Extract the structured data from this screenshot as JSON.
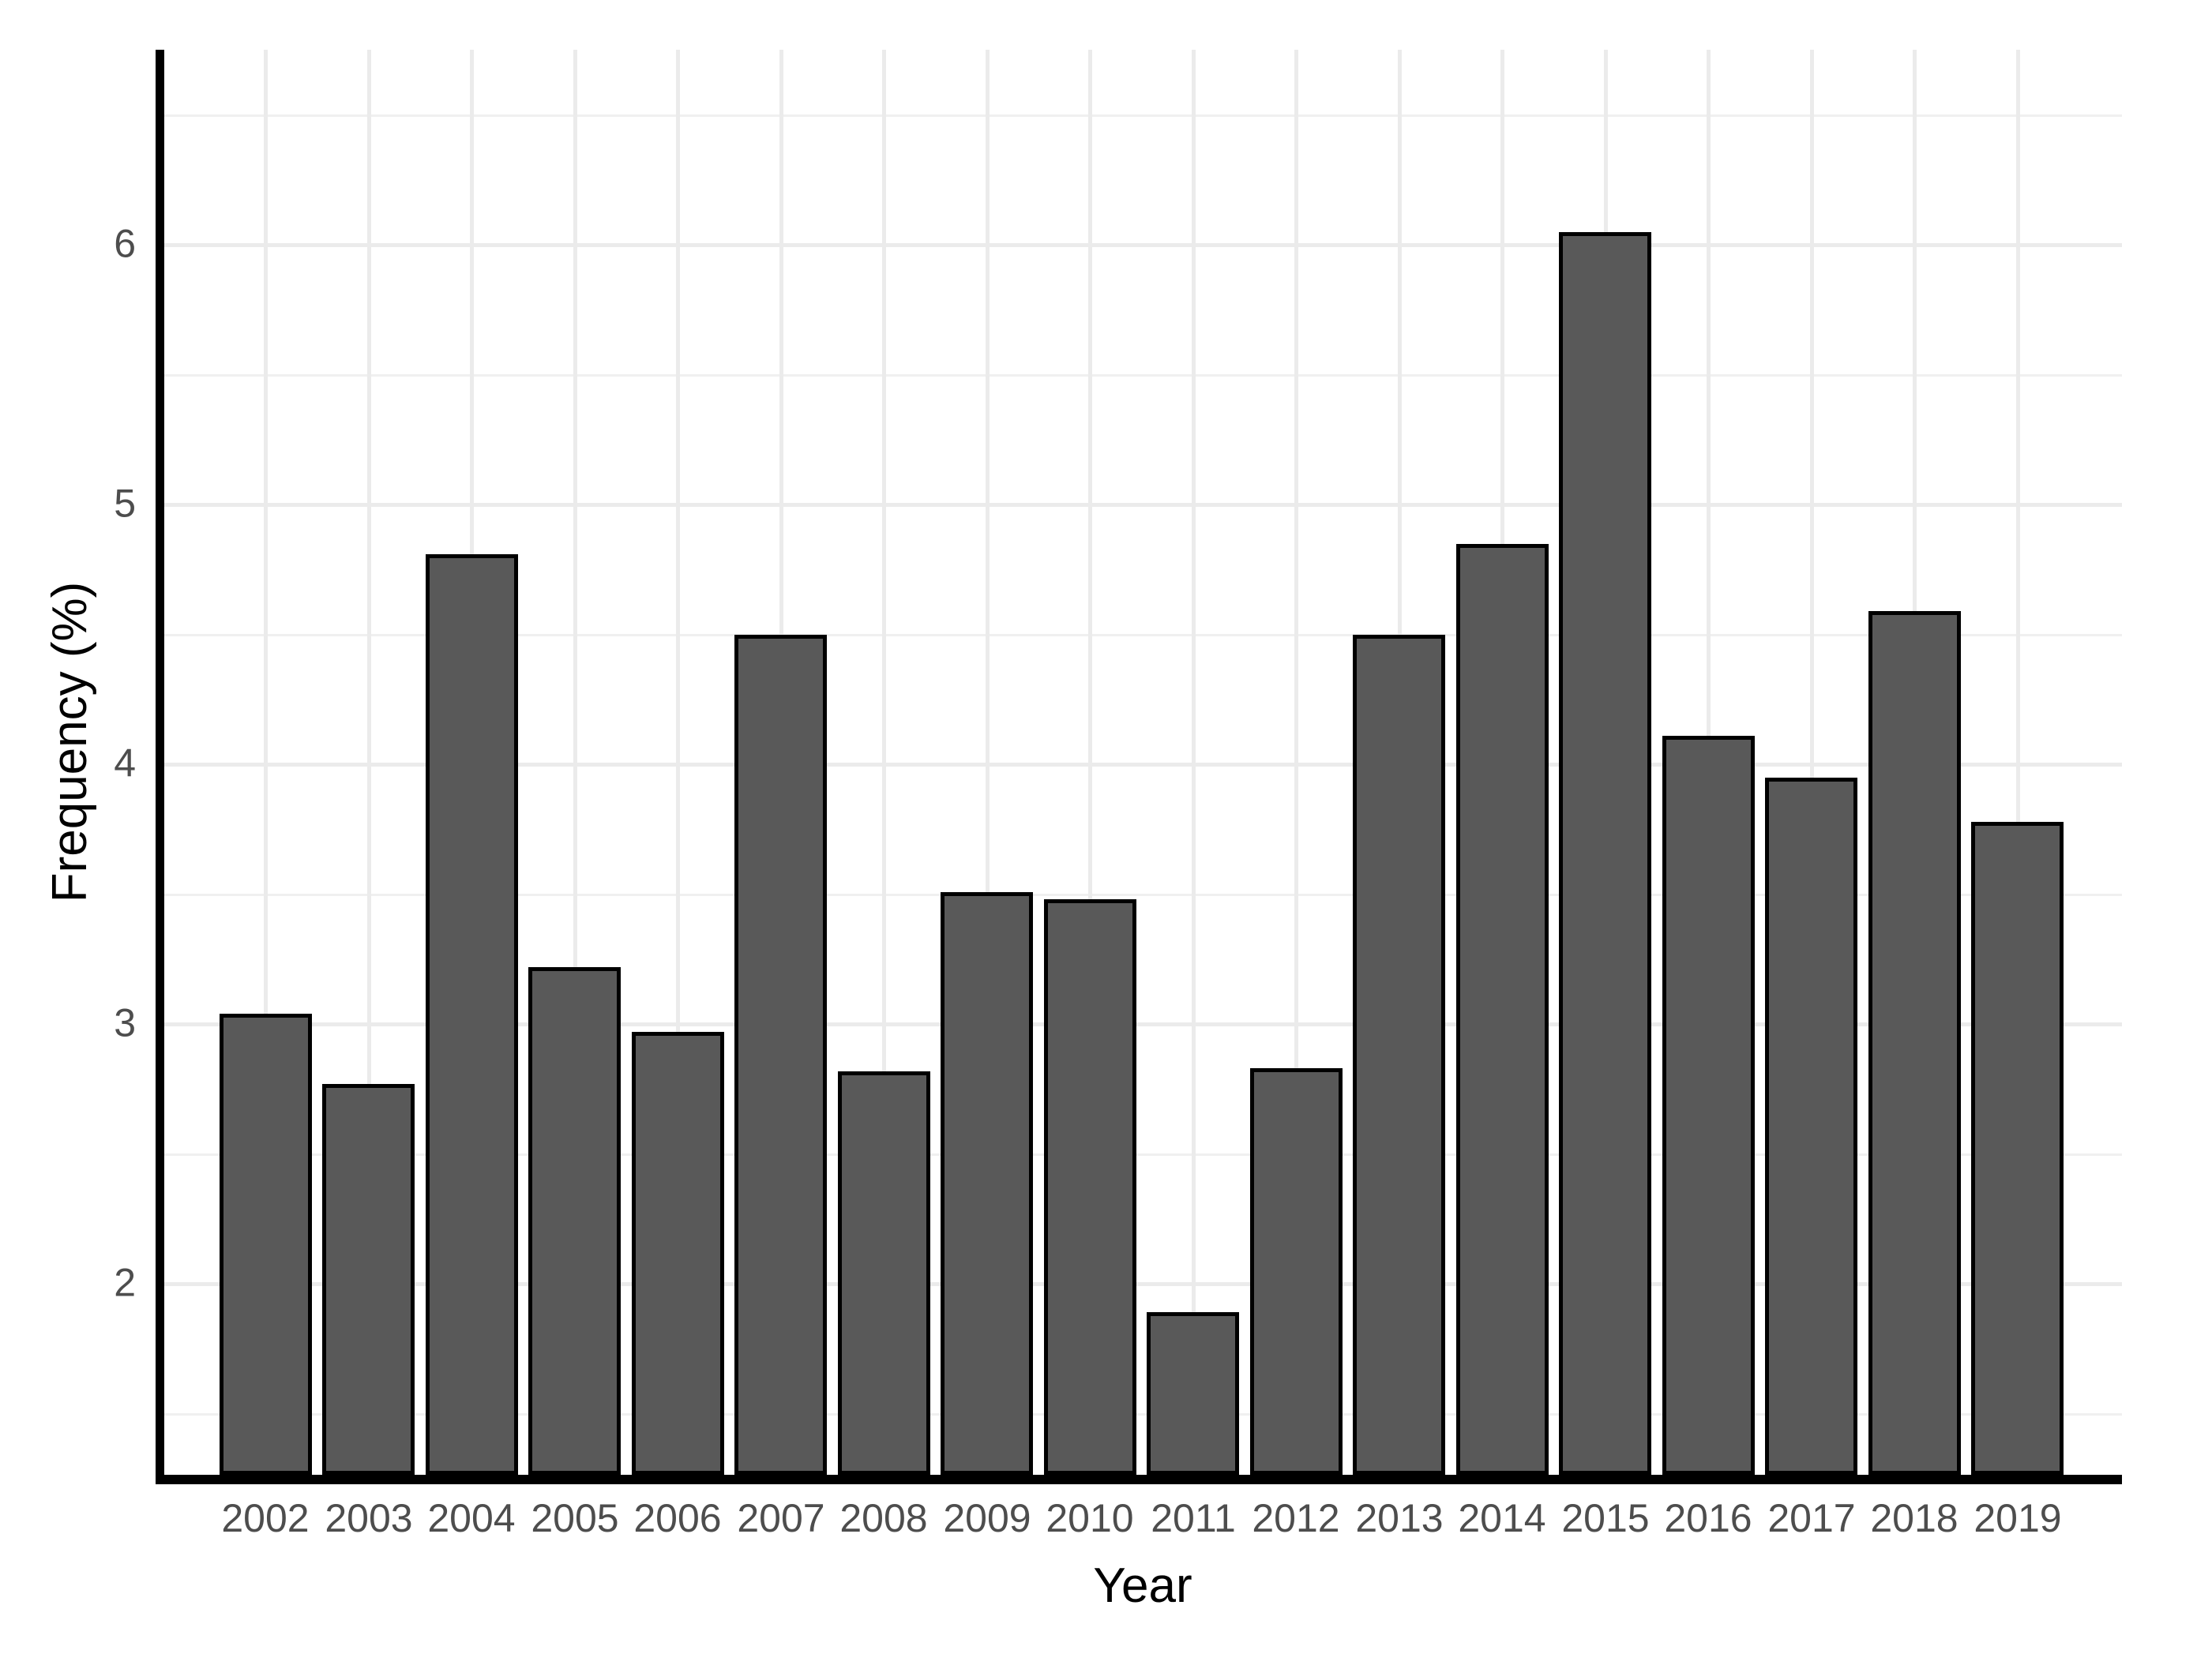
{
  "figure": {
    "background": "#ffffff"
  },
  "chart_data": {
    "type": "bar",
    "title": "",
    "xlabel": "Year",
    "ylabel": "Frequency (%)",
    "categories": [
      "2002",
      "2003",
      "2004",
      "2005",
      "2006",
      "2007",
      "2008",
      "2009",
      "2010",
      "2011",
      "2012",
      "2013",
      "2014",
      "2015",
      "2016",
      "2017",
      "2018",
      "2019"
    ],
    "values": [
      3.03,
      2.76,
      4.8,
      3.21,
      2.96,
      4.49,
      2.81,
      3.5,
      3.47,
      1.88,
      2.82,
      4.49,
      4.84,
      6.04,
      4.1,
      3.94,
      4.58,
      3.77
    ],
    "y_ticks": [
      2,
      3,
      4,
      5,
      6
    ],
    "y_minor_ticks": [
      1.5,
      2.5,
      3.5,
      4.5,
      5.5,
      6.5
    ],
    "ylim": [
      1.26,
      6.75
    ],
    "grid": "horizontal major+minor, vertical major at category centers",
    "legend": "none",
    "bar_fill": "#595959",
    "bar_stroke": "#000000",
    "major_grid_color": "#ebebeb",
    "minor_grid_color": "#f0f0f0",
    "axis_line_color": "#000000",
    "tick_label_color": "#4d4d4d",
    "axis_title_color": "#000000"
  }
}
